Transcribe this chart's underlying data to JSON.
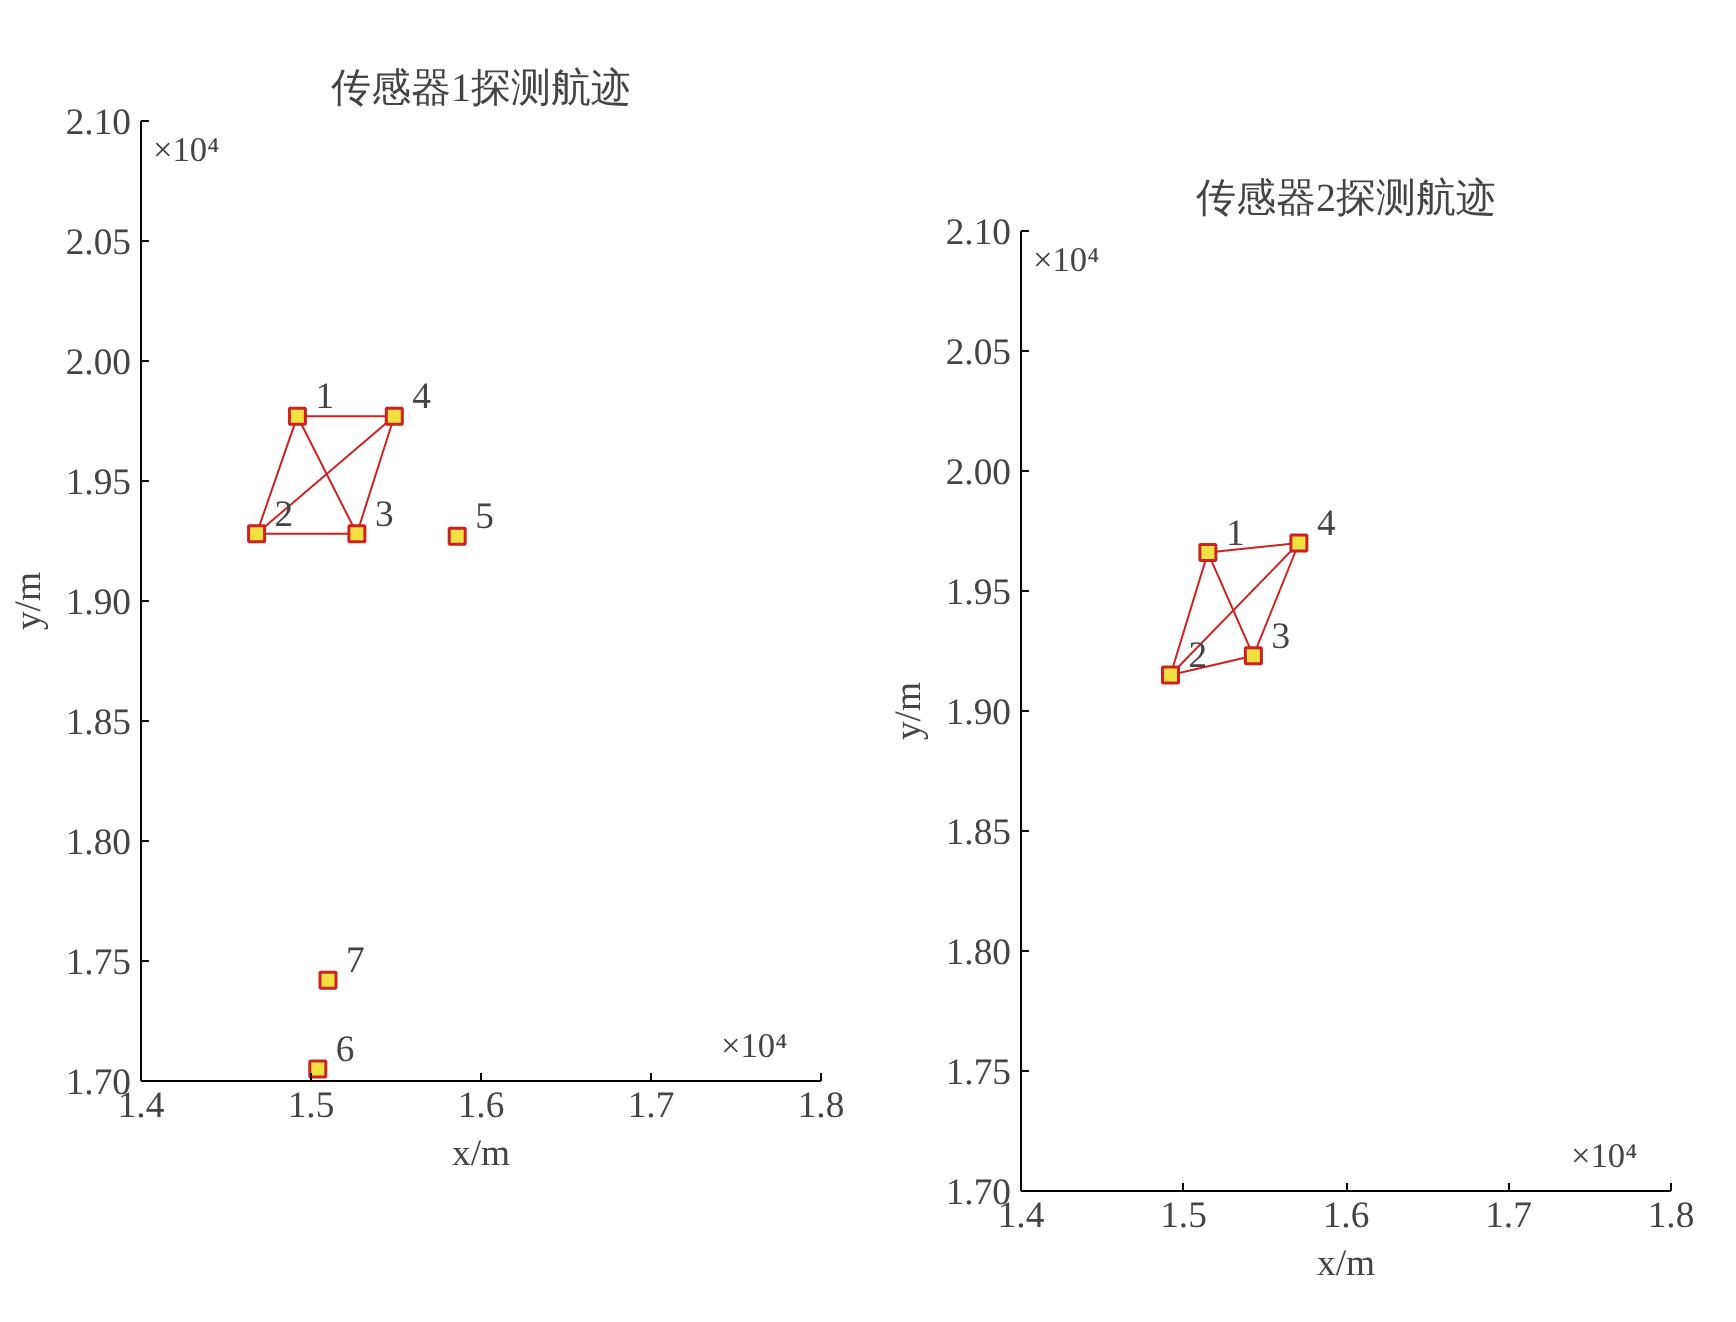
{
  "chart_data": [
    {
      "type": "scatter",
      "title": "传感器1探测航迹",
      "xlabel": "x/m",
      "ylabel": "y/m",
      "xlim": [
        1.4,
        1.8
      ],
      "ylim": [
        1.7,
        2.1
      ],
      "xticks": [
        1.4,
        1.5,
        1.6,
        1.7,
        1.8
      ],
      "yticks": [
        {
          "value": 1.7,
          "label": "1.70"
        },
        {
          "value": 1.75,
          "label": "1.75"
        },
        {
          "value": 1.8,
          "label": "1.80"
        },
        {
          "value": 1.85,
          "label": "1.85"
        },
        {
          "value": 1.9,
          "label": "1.90"
        },
        {
          "value": 1.95,
          "label": "1.95"
        },
        {
          "value": 2.0,
          "label": "2.00"
        },
        {
          "value": 2.05,
          "label": "2.05"
        },
        {
          "value": 2.1,
          "label": "2.10"
        }
      ],
      "grid": false,
      "marker": "square",
      "line_style": "solid",
      "series": [
        {
          "type": "line",
          "marker": "none",
          "color": "#cc2222",
          "x": [
            1.492,
            1.549,
            1.527,
            1.468,
            1.492,
            1.527
          ],
          "values": [
            1.977,
            1.977,
            1.928,
            1.928,
            1.977,
            1.928
          ]
        },
        {
          "type": "line",
          "marker": "none",
          "color": "#cc2222",
          "x": [
            1.549,
            1.468
          ],
          "values": [
            1.977,
            1.928
          ]
        },
        {
          "color": "#cc2222",
          "x": [
            1.492,
            1.549,
            1.468,
            1.527,
            1.586,
            1.51,
            1.504
          ],
          "values": [
            1.977,
            1.977,
            1.928,
            1.928,
            1.927,
            1.742,
            1.705
          ]
        }
      ],
      "annotations": [
        "×10⁴",
        "×10⁴",
        {
          "text": "1",
          "x": 1.492,
          "y": 1.977
        },
        {
          "text": "4",
          "x": 1.549,
          "y": 1.977
        },
        {
          "text": "2",
          "x": 1.468,
          "y": 1.928
        },
        {
          "text": "3",
          "x": 1.527,
          "y": 1.928
        },
        {
          "text": "5",
          "x": 1.586,
          "y": 1.927
        },
        {
          "text": "7",
          "x": 1.51,
          "y": 1.742
        },
        {
          "text": "6",
          "x": 1.504,
          "y": 1.705
        }
      ]
    },
    {
      "type": "scatter",
      "title": "传感器2探测航迹",
      "xlabel": "x/m",
      "ylabel": "y/m",
      "xlim": [
        1.4,
        1.8
      ],
      "ylim": [
        1.7,
        2.1
      ],
      "xticks": [
        1.4,
        1.5,
        1.6,
        1.7,
        1.8
      ],
      "yticks": [
        {
          "value": 1.7,
          "label": "1.70"
        },
        {
          "value": 1.75,
          "label": "1.75"
        },
        {
          "value": 1.8,
          "label": "1.80"
        },
        {
          "value": 1.85,
          "label": "1.85"
        },
        {
          "value": 1.9,
          "label": "1.90"
        },
        {
          "value": 1.95,
          "label": "1.95"
        },
        {
          "value": 2.0,
          "label": "2.00"
        },
        {
          "value": 2.05,
          "label": "2.05"
        },
        {
          "value": 2.1,
          "label": "2.10"
        }
      ],
      "grid": false,
      "marker": "square",
      "line_style": "solid",
      "series": [
        {
          "type": "line",
          "marker": "none",
          "color": "#cc2222",
          "x": [
            1.515,
            1.571,
            1.543,
            1.492,
            1.515,
            1.543
          ],
          "values": [
            1.966,
            1.97,
            1.923,
            1.915,
            1.966,
            1.923
          ]
        },
        {
          "type": "line",
          "marker": "none",
          "color": "#cc2222",
          "x": [
            1.571,
            1.492
          ],
          "values": [
            1.97,
            1.915
          ]
        },
        {
          "color": "#cc2222",
          "x": [
            1.515,
            1.571,
            1.492,
            1.543
          ],
          "values": [
            1.966,
            1.97,
            1.915,
            1.923
          ]
        }
      ],
      "annotations": [
        "×10⁴",
        "×10⁴",
        {
          "text": "1",
          "x": 1.515,
          "y": 1.966
        },
        {
          "text": "4",
          "x": 1.571,
          "y": 1.97
        },
        {
          "text": "2",
          "x": 1.492,
          "y": 1.915
        },
        {
          "text": "3",
          "x": 1.543,
          "y": 1.923
        }
      ]
    }
  ]
}
